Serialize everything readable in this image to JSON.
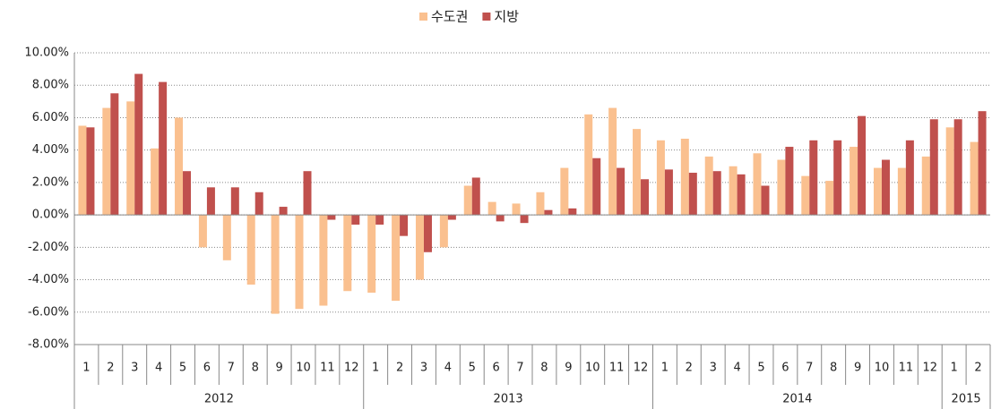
{
  "chart_data": {
    "type": "bar",
    "categories": [
      "1",
      "2",
      "3",
      "4",
      "5",
      "6",
      "7",
      "8",
      "9",
      "10",
      "11",
      "12",
      "1",
      "2",
      "3",
      "4",
      "5",
      "6",
      "7",
      "8",
      "9",
      "10",
      "11",
      "12",
      "1",
      "2",
      "3",
      "4",
      "5",
      "6",
      "7",
      "8",
      "9",
      "10",
      "11",
      "12",
      "1",
      "2"
    ],
    "years": [
      "2012",
      "2013",
      "2014",
      "2015"
    ],
    "series": [
      {
        "name": "수도권",
        "color": "#fac08f",
        "values": [
          5.5,
          6.6,
          7.0,
          4.1,
          6.0,
          -2.0,
          -2.8,
          -4.3,
          -6.1,
          -5.8,
          -5.6,
          -4.7,
          -4.8,
          -5.3,
          -4.0,
          -2.0,
          1.8,
          0.8,
          0.7,
          1.4,
          2.9,
          6.2,
          6.6,
          5.3,
          4.6,
          4.7,
          3.6,
          3.0,
          3.8,
          3.4,
          2.4,
          2.1,
          4.2,
          2.9,
          2.9,
          3.6,
          5.4,
          4.5
        ]
      },
      {
        "name": "지방",
        "color": "#c0504d",
        "values": [
          5.4,
          7.5,
          8.7,
          8.2,
          2.7,
          1.7,
          1.7,
          1.4,
          0.5,
          2.7,
          -0.3,
          -0.6,
          -0.6,
          -1.3,
          -2.3,
          -0.3,
          2.3,
          -0.4,
          -0.5,
          0.3,
          0.4,
          3.5,
          2.9,
          2.2,
          2.8,
          2.6,
          2.7,
          2.5,
          1.8,
          4.2,
          4.6,
          4.6,
          6.1,
          3.4,
          4.6,
          5.9,
          5.9,
          6.4
        ]
      }
    ],
    "ylim": [
      -8,
      10
    ],
    "yticks": [
      {
        "value": -8,
        "label": "-8.00%"
      },
      {
        "value": -6,
        "label": "-6.00%"
      },
      {
        "value": -4,
        "label": "-4.00%"
      },
      {
        "value": -2,
        "label": "-2.00%"
      },
      {
        "value": 0,
        "label": "0.00%"
      },
      {
        "value": 2,
        "label": "2.00%"
      },
      {
        "value": 4,
        "label": "4.00%"
      },
      {
        "value": 6,
        "label": "6.00%"
      },
      {
        "value": 8,
        "label": "8.00%"
      },
      {
        "value": 10,
        "label": "10.00%"
      }
    ],
    "grid": true,
    "legend": "top"
  }
}
